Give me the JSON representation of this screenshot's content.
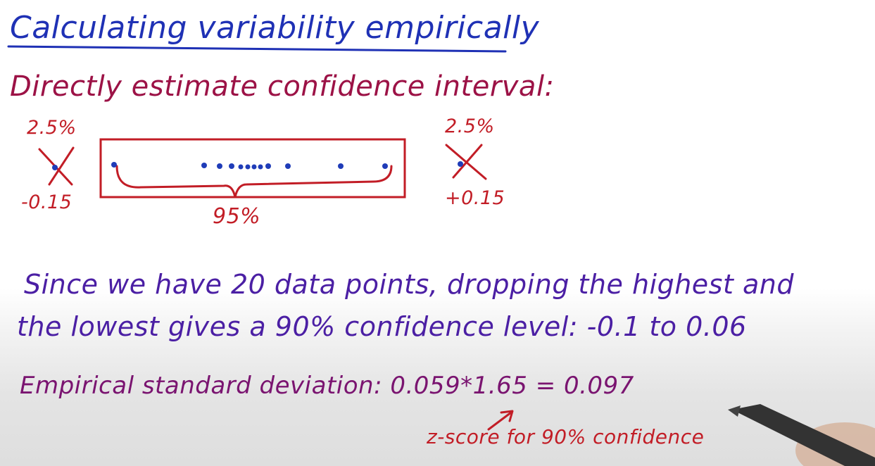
{
  "title": "Calculating variability empirically",
  "subtitle": "Directly estimate confidence interval:",
  "diagram": {
    "left_percent": "2.5%",
    "right_percent": "2.5%",
    "left_value": "-0.15",
    "right_value": "+0.15",
    "middle_percent": "95%"
  },
  "text_line_1": "Since we have 20 data points, dropping the highest and",
  "text_line_2": "the lowest gives a 90% confidence level:  -0.1 to 0.06",
  "empirical_sd": "Empirical standard deviation:  0.059*1.65 = 0.097",
  "z_score_note": "z-score for 90% confidence",
  "colors": {
    "title": "#1f31b5",
    "subtitle": "#9c1246",
    "annotation_red": "#c21d26",
    "body_text": "#4b1fa4",
    "formula": "#7a1470",
    "points": "#1f3cb8"
  }
}
